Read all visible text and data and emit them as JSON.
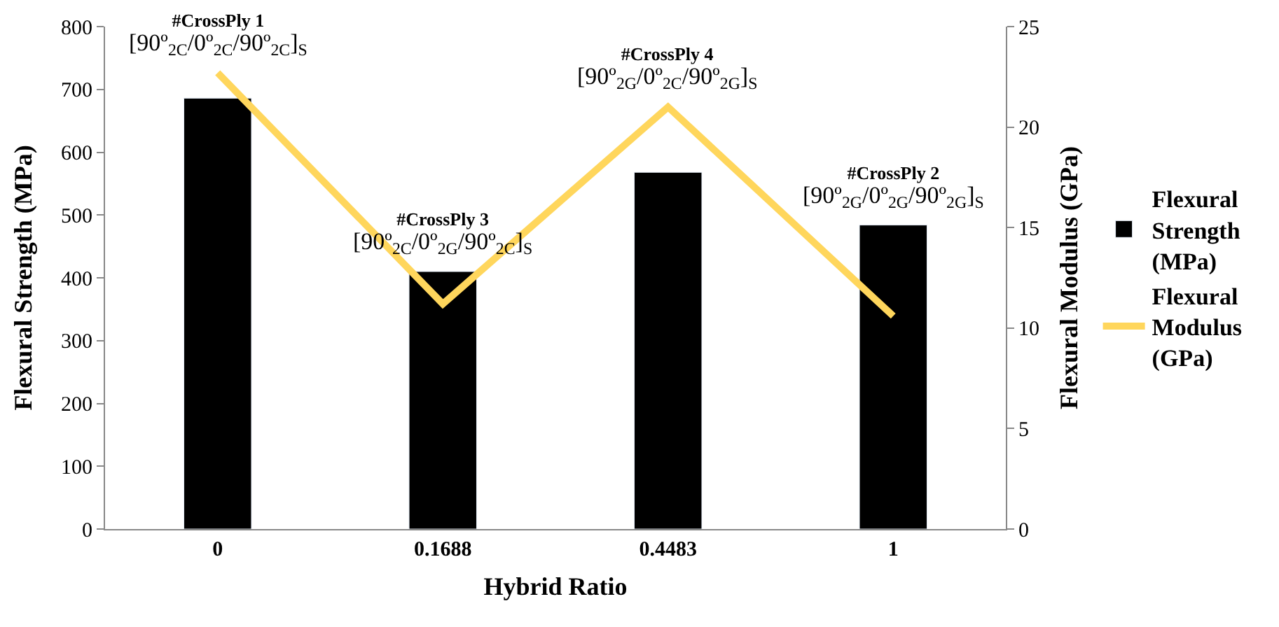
{
  "chart_data": {
    "type": "bar",
    "xlabel": "Hybrid Ratio",
    "ylabel": "Flexural Strength (MPa)",
    "y2label": "Flexural Modulus (GPa)",
    "categories": [
      "0",
      "0.1688",
      "0.4483",
      "1"
    ],
    "series": [
      {
        "name": "Flexural Strength (MPa)",
        "color": "#000000",
        "values": [
          686,
          410,
          568,
          484
        ]
      },
      {
        "name": "Flexural Modulus (GPa)",
        "type": "line",
        "axis": "y2",
        "color": "#ffd65c",
        "values": [
          22.7,
          11.2,
          21.0,
          10.6
        ]
      }
    ],
    "ylim": [
      0,
      800
    ],
    "yticks": [
      0,
      100,
      200,
      300,
      400,
      500,
      600,
      700,
      800
    ],
    "y2lim": [
      0,
      25
    ],
    "y2ticks": [
      0,
      5,
      10,
      15,
      20,
      25
    ],
    "annotations": [
      "#CrossPly 1\n[90º$_{2C}$/0º$_{2C}$/90º$_{2C}$]$_{S}$",
      "#CrossPly 3\n[90º$_{2C}$/0º$_{2G}$/90º$_{2C}$]$_{S}$",
      "#CrossPly 4\n[90º$_{2G}$/0º$_{2C}$/90º$_{2G}$]$_{S}$",
      "#CrossPly 2\n[90º$_{2G}$/0º$_{2G}$/90º$_{2G}$]$_{S}$"
    ],
    "legend": "right",
    "marker": "none",
    "line_style": "solid"
  }
}
